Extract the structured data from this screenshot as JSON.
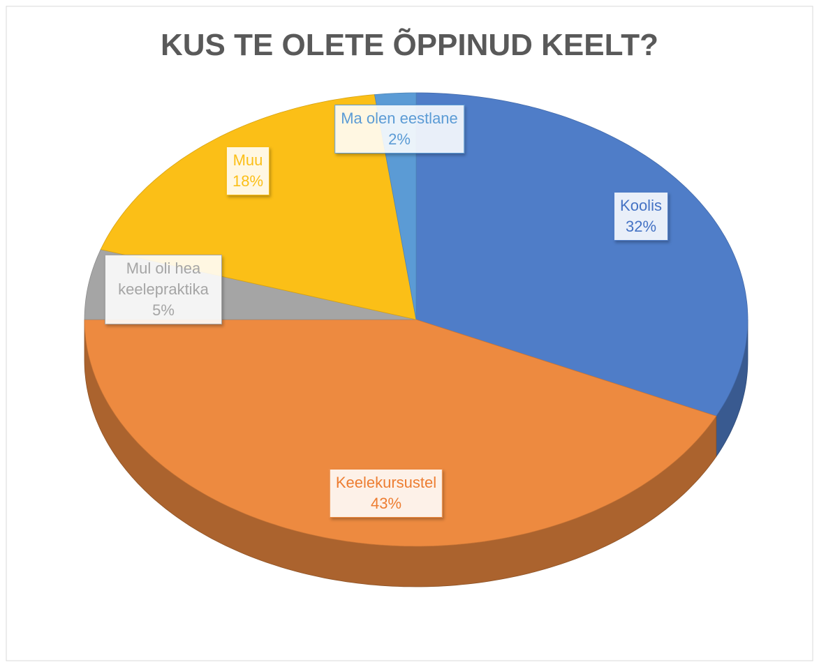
{
  "chart_data": {
    "type": "pie",
    "title": "KUS TE OLETE ÕPPINUD KEELT?",
    "categories": [
      "Koolis",
      "Keelekursustel",
      "Mul oli hea keelepraktika",
      "Muu",
      "Ma olen eestlane"
    ],
    "values": [
      32,
      43,
      5,
      18,
      2
    ],
    "value_labels": [
      "32%",
      "43%",
      "5%",
      "18%",
      "2%"
    ],
    "colors": [
      "#4f7dc8",
      "#ed8a40",
      "#a5a5a5",
      "#fbbf17",
      "#5b9bd5"
    ]
  }
}
